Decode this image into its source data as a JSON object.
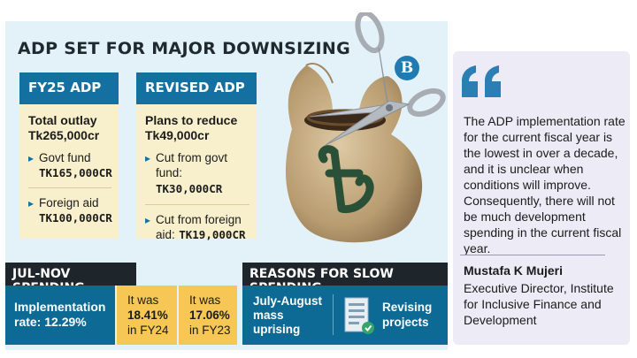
{
  "headline": "ADP SET FOR MAJOR DOWNSIZING",
  "logo_letter": "B",
  "fy25": {
    "header": "FY25 ADP",
    "outlay_label": "Total outlay",
    "outlay_value": "Tk265,000cr",
    "items": [
      {
        "label": "Govt fund",
        "value": "TK165,000CR"
      },
      {
        "label": "Foreign aid",
        "value": "TK100,000CR"
      }
    ]
  },
  "revised": {
    "header": "REVISED ADP",
    "plan_label": "Plans to reduce",
    "plan_value": "Tk49,000cr",
    "items": [
      {
        "label": "Cut from govt",
        "label2": "fund:",
        "value": "TK30,000CR"
      },
      {
        "label": "Cut from foreign",
        "label2": "aid:",
        "value": "TK19,000CR"
      }
    ]
  },
  "spending": {
    "header": "JUL-NOV SPENDING",
    "rate_line1": "Implementation",
    "rate_line2": "rate: 12.29%",
    "fy24": {
      "line1": "It was",
      "value": "18.41%",
      "line3": "in FY24"
    },
    "fy23": {
      "line1": "It was",
      "value": "17.06%",
      "line3": "in FY23"
    }
  },
  "reasons": {
    "header": "REASONS FOR SLOW SPENDING",
    "reason1": [
      "July-August",
      "mass",
      "uprising"
    ],
    "reason2": [
      "Revising",
      "projects"
    ]
  },
  "quote": {
    "text": "The ADP implementation rate for the current fiscal year is the lowest in over a decade, and it is unclear when conditions will improve. Consequently, there will not be much development spending in the current fiscal year.",
    "name": "Mustafa K Mujeri",
    "role": "Executive Director, Institute for Inclusive Finance and Development"
  },
  "icons": {
    "bag": "money-bag-icon",
    "scissors": "scissors-icon",
    "taka": "taka-symbol-icon",
    "document": "document-edit-icon",
    "quote": "quote-mark-icon"
  },
  "colors": {
    "panel_bg": "#e3f1f9",
    "card_header": "#1570a2",
    "card_bg": "#f8f0cc",
    "section_header": "#1f262b",
    "dark_box": "#0d6a95",
    "highlight": "#f6c755",
    "quote_bg": "#ecebf6"
  }
}
